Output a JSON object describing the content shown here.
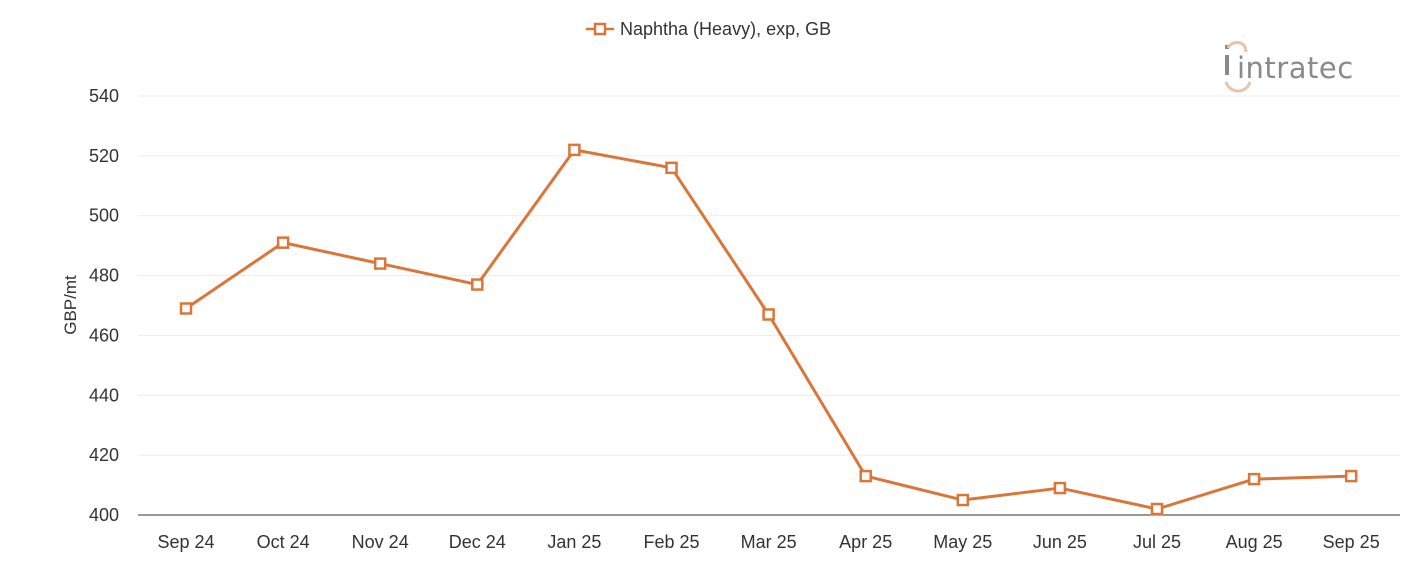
{
  "chart_data": {
    "type": "line",
    "categories": [
      "Sep 24",
      "Oct 24",
      "Nov 24",
      "Dec 24",
      "Jan 25",
      "Feb 25",
      "Mar 25",
      "Apr 25",
      "May 25",
      "Jun 25",
      "Jul 25",
      "Aug 25",
      "Sep 25"
    ],
    "series": [
      {
        "name": "Naphtha (Heavy), exp, GB",
        "color": "#d9773b",
        "marker": "square-open",
        "values": [
          469,
          491,
          484,
          477,
          522,
          516,
          467,
          413,
          405,
          409,
          402,
          412,
          413
        ]
      }
    ],
    "ylabel": "GBP/mt",
    "ylim": [
      400,
      540
    ],
    "yticks": [
      400,
      420,
      440,
      460,
      480,
      500,
      520,
      540
    ],
    "grid": true,
    "legend_position": "top-center"
  },
  "logo": {
    "text": "intratec"
  },
  "colors": {
    "series": "#d9773b",
    "grid": "#ececec",
    "axis": "#333333",
    "logo_text": "#8a8a8a",
    "logo_accent": "#e8c4a8"
  }
}
